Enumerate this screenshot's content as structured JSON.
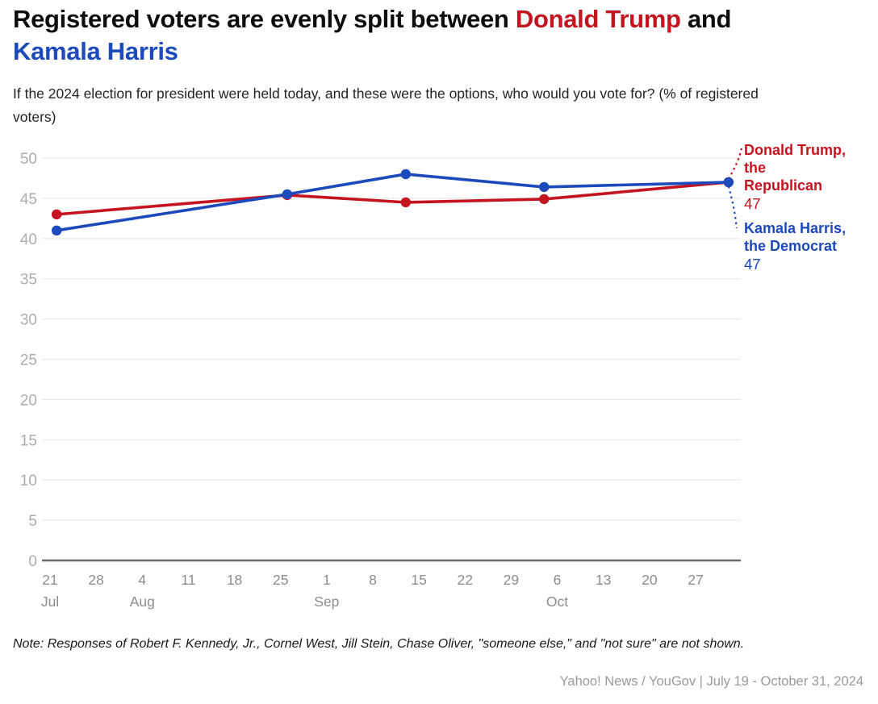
{
  "title": {
    "part1": "Registered voters are evenly split between ",
    "trump_name": "Donald Trump",
    "part2": " and ",
    "harris_name": "Kamala Harris"
  },
  "subtitle": "If the 2024 election for president were held today, and these were the options, who would you vote for? (% of registered voters)",
  "annotations": {
    "trump": {
      "label": "Donald Trump, the Republican",
      "value": "47"
    },
    "harris": {
      "label": "Kamala Harris, the Democrat",
      "value": "47"
    }
  },
  "note": "Note: Responses of Robert F. Kennedy, Jr., Cornel West, Jill Stein, Chase Oliver, \"someone else,\" and \"not sure\" are not shown.",
  "source": "Yahoo! News / YouGov | July 19 - October 31, 2024",
  "colors": {
    "red": "#c41420",
    "blue": "#1c49bb",
    "grid": "#e9e9e9",
    "axis": "#6b6b6b",
    "tick_label": "#8d8d8d",
    "y_label": "#adadad"
  },
  "chart_data": {
    "type": "line",
    "x_days": [
      1,
      36,
      54,
      75,
      103
    ],
    "series": [
      {
        "name": "Donald Trump, the Republican",
        "color_key": "red",
        "values": [
          43,
          45.4,
          44.5,
          44.9,
          47
        ]
      },
      {
        "name": "Kamala Harris, the Democrat",
        "color_key": "blue",
        "values": [
          41,
          45.5,
          48,
          46.4,
          47
        ]
      }
    ],
    "y_ticks": [
      0,
      5,
      10,
      15,
      20,
      25,
      30,
      35,
      40,
      45,
      50
    ],
    "ylim": [
      0,
      50
    ],
    "x_ticks": [
      {
        "day": 0,
        "label": "21",
        "month": "Jul"
      },
      {
        "day": 7,
        "label": "28"
      },
      {
        "day": 14,
        "label": "4",
        "month": "Aug"
      },
      {
        "day": 21,
        "label": "11"
      },
      {
        "day": 28,
        "label": "18"
      },
      {
        "day": 35,
        "label": "25"
      },
      {
        "day": 42,
        "label": "1",
        "month": "Sep"
      },
      {
        "day": 49,
        "label": "8"
      },
      {
        "day": 56,
        "label": "15"
      },
      {
        "day": 63,
        "label": "22"
      },
      {
        "day": 70,
        "label": "29"
      },
      {
        "day": 77,
        "label": "6",
        "month": "Oct"
      },
      {
        "day": 84,
        "label": "13"
      },
      {
        "day": 91,
        "label": "20"
      },
      {
        "day": 98,
        "label": "27"
      }
    ],
    "grid": true,
    "legend_position": "right-annotations"
  }
}
